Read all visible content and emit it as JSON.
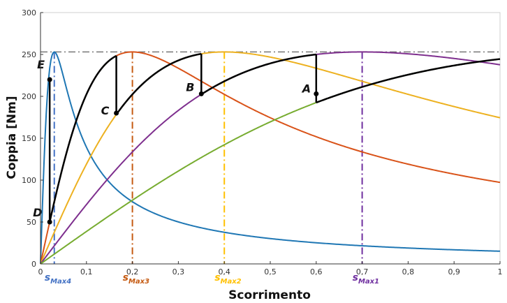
{
  "chart_data": {
    "type": "line",
    "xlabel": "Scorrimento",
    "ylabel": "Coppia [Nm]",
    "xlim": [
      0,
      1
    ],
    "ylim": [
      0,
      300
    ],
    "x_ticks": [
      0,
      0.1,
      0.2,
      0.3,
      0.4,
      0.5,
      0.6,
      0.7,
      0.8,
      0.9,
      1
    ],
    "x_tick_labels": [
      "0",
      "0,1",
      "0,2",
      "0,3",
      "0,4",
      "0,5",
      "0,6",
      "0,7",
      "0,8",
      "0,9",
      "1"
    ],
    "y_ticks": [
      0,
      50,
      100,
      150,
      200,
      250,
      300
    ],
    "y_tick_labels": [
      "0",
      "50",
      "100",
      "150",
      "200",
      "250",
      "300"
    ],
    "max_torque": 253,
    "series": [
      {
        "color": "#1f77b4",
        "s_max": 0.03,
        "t_max": 253
      },
      {
        "color": "#d95319",
        "s_max": 0.2,
        "t_max": 253
      },
      {
        "color": "#edb120",
        "s_max": 0.4,
        "t_max": 253
      },
      {
        "color": "#7e2f8e",
        "s_max": 0.7,
        "t_max": 253
      },
      {
        "color": "#77ac30",
        "s_max": 1.3,
        "t_max": 253
      }
    ],
    "vertical_markers": [
      {
        "x": 0.03,
        "color": "#4472c4",
        "label": "s",
        "sub": "Max4"
      },
      {
        "x": 0.2,
        "color": "#c55a11",
        "label": "s",
        "sub": "Max3"
      },
      {
        "x": 0.4,
        "color": "#ffc000",
        "label": "s",
        "sub": "Max2"
      },
      {
        "x": 0.7,
        "color": "#7030a0",
        "label": "s",
        "sub": "Max1"
      }
    ],
    "points": [
      {
        "label": "A",
        "x": 0.6,
        "y": 203
      },
      {
        "label": "B",
        "x": 0.35,
        "y": 203
      },
      {
        "label": "C",
        "x": 0.165,
        "y": 180
      },
      {
        "label": "D",
        "x": 0.02,
        "y": 50
      },
      {
        "label": "E",
        "x": 0.02,
        "y": 220
      }
    ],
    "trajectory": {
      "color": "#000000",
      "segments": [
        {
          "type": "curve",
          "series_index": 0,
          "from": 0.02,
          "to": 0.02
        },
        {
          "type": "curve",
          "series_index": 1,
          "from": 0.02,
          "to": 0.165
        },
        {
          "type": "curve",
          "series_index": 2,
          "from": 0.165,
          "to": 0.35
        },
        {
          "type": "curve",
          "series_index": 3,
          "from": 0.35,
          "to": 0.6
        },
        {
          "type": "curve",
          "series_index": 4,
          "from": 0.6,
          "to": 1.0
        }
      ],
      "drops": [
        {
          "x": 0.165,
          "from_series": 1,
          "to_series": 2
        },
        {
          "x": 0.35,
          "from_series": 2,
          "to_series": 3
        },
        {
          "x": 0.6,
          "from_series": 3,
          "to_series": 4
        }
      ]
    }
  }
}
